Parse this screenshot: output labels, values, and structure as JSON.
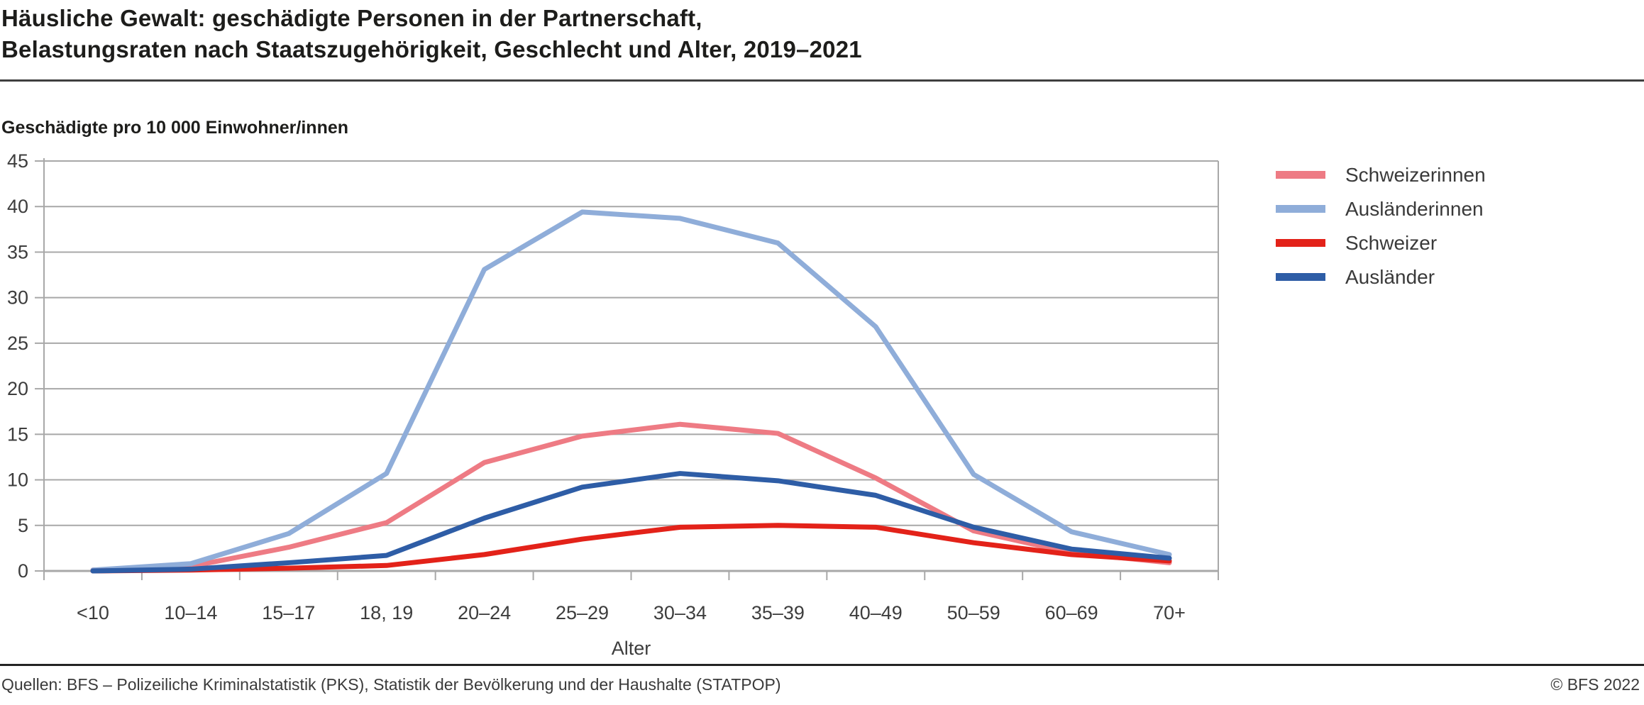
{
  "header": {
    "title_line1": "Häusliche Gewalt: geschädigte Personen in der Partnerschaft,",
    "title_line2": "Belastungsraten nach Staatszugehörigkeit, Geschlecht und Alter, 2019–2021"
  },
  "subtitle": "Geschädigte pro 10 000 Einwohner/innen",
  "chart_data": {
    "type": "line",
    "title": "Häusliche Gewalt: geschädigte Personen in der Partnerschaft, Belastungsraten nach Staatszugehörigkeit, Geschlecht und Alter, 2019–2021",
    "ylabel": "Geschädigte pro 10 000 Einwohner/innen",
    "xlabel": "Alter",
    "categories": [
      "<10",
      "10–14",
      "15–17",
      "18, 19",
      "20–24",
      "25–29",
      "30–34",
      "35–39",
      "40–49",
      "50–59",
      "60–69",
      "70+"
    ],
    "series": [
      {
        "name": "Schweizerinnen",
        "color": "#ee7b84",
        "values": [
          0.1,
          0.5,
          2.6,
          5.3,
          11.9,
          14.8,
          16.1,
          15.1,
          10.2,
          4.4,
          2.0,
          0.9
        ]
      },
      {
        "name": "Ausländerinnen",
        "color": "#8fadd9",
        "values": [
          0.1,
          0.8,
          4.1,
          10.7,
          33.1,
          39.4,
          38.7,
          36.0,
          26.8,
          10.6,
          4.3,
          1.8
        ]
      },
      {
        "name": "Schweizer",
        "color": "#e32219",
        "values": [
          0.0,
          0.1,
          0.3,
          0.6,
          1.8,
          3.5,
          4.8,
          5.0,
          4.8,
          3.1,
          1.8,
          1.1
        ]
      },
      {
        "name": "Ausländer",
        "color": "#2e5da6",
        "values": [
          0.0,
          0.2,
          0.9,
          1.7,
          5.8,
          9.2,
          10.7,
          9.9,
          8.3,
          4.8,
          2.4,
          1.4
        ]
      }
    ],
    "ylim": [
      0,
      45
    ],
    "ytick_step": 5,
    "grid": true,
    "legend_position": "right"
  },
  "footer": {
    "source": "Quellen: BFS – Polizeiliche Kriminalstatistik (PKS), Statistik der Bevölkerung und der Haushalte (STATPOP)",
    "copyright": "© BFS 2022"
  },
  "colors": {
    "grid": "#a8a8a8",
    "tick_text": "#3d3d3d",
    "text": "#1d1d1b"
  }
}
